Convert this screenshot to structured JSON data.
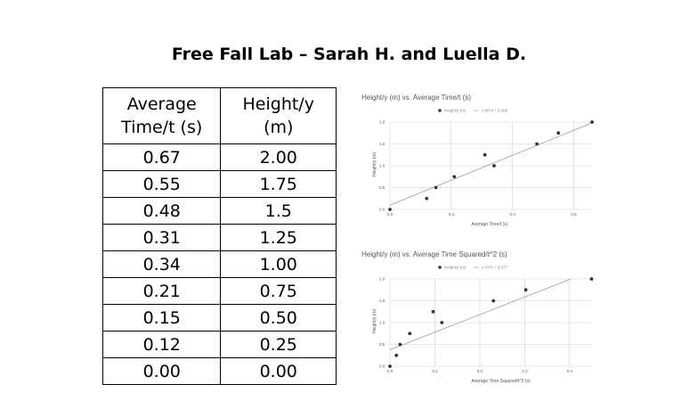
{
  "page": {
    "title": "Free Fall Lab – Sarah H. and Luella D."
  },
  "table": {
    "headers": [
      "Average\nTime/t (s)",
      "Height/y\n(m)"
    ],
    "rows": [
      [
        "0.67",
        "2.00"
      ],
      [
        "0.55",
        "1.75"
      ],
      [
        "0.48",
        "1.5"
      ],
      [
        "0.31",
        "1.25"
      ],
      [
        "0.34",
        "1.00"
      ],
      [
        "0.21",
        "0.75"
      ],
      [
        "0.15",
        "0.50"
      ],
      [
        "0.12",
        "0.25"
      ],
      [
        "0.00",
        "0.00"
      ]
    ]
  },
  "chart_data": [
    {
      "type": "scatter",
      "title": "Height/y (m) vs. Average Time/t (s)",
      "xlabel": "Average Time/t (s)",
      "ylabel": "Height/y (m)",
      "xlim": [
        0,
        0.66
      ],
      "ylim": [
        0,
        2.0
      ],
      "xticks": [
        "0.0",
        "0.2",
        "0.4",
        "0.6"
      ],
      "yticks": [
        "0.0",
        "0.5",
        "1.0",
        "1.5",
        "2.0"
      ],
      "grid": true,
      "legend_position": "top",
      "series": [
        {
          "name": "Height/y (m)",
          "x": [
            0.67,
            0.55,
            0.48,
            0.31,
            0.34,
            0.21,
            0.15,
            0.12,
            0.0
          ],
          "y": [
            2.0,
            1.75,
            1.5,
            1.25,
            1.0,
            0.75,
            0.5,
            0.25,
            0.0
          ]
        }
      ],
      "trendline": {
        "label": "2.86*x + 0.096",
        "slope": 2.86,
        "intercept": 0.096
      }
    },
    {
      "type": "scatter",
      "title": "Height/y (m) vs. Average Time Squared/t^2 (s)",
      "xlabel": "Average Time Squared/t^2 (s)",
      "ylabel": "Height/y (m)",
      "xlim": [
        0,
        0.45
      ],
      "ylim": [
        0,
        2.0
      ],
      "xticks": [
        "0.0",
        "0.1",
        "0.2",
        "0.3",
        "0.4"
      ],
      "yticks": [
        "0.0",
        "0.5",
        "1.0",
        "1.5",
        "2.0"
      ],
      "grid": true,
      "legend_position": "top",
      "series": [
        {
          "name": "Height/y (m)",
          "x": [
            0.4489,
            0.3025,
            0.2304,
            0.0961,
            0.1156,
            0.0441,
            0.0225,
            0.0144,
            0.0
          ],
          "y": [
            2.0,
            1.75,
            1.5,
            1.25,
            1.0,
            0.75,
            0.5,
            0.25,
            0.0
          ]
        }
      ],
      "trendline": {
        "label": "4.03*x + 0.377",
        "slope": 4.03,
        "intercept": 0.377
      }
    }
  ]
}
